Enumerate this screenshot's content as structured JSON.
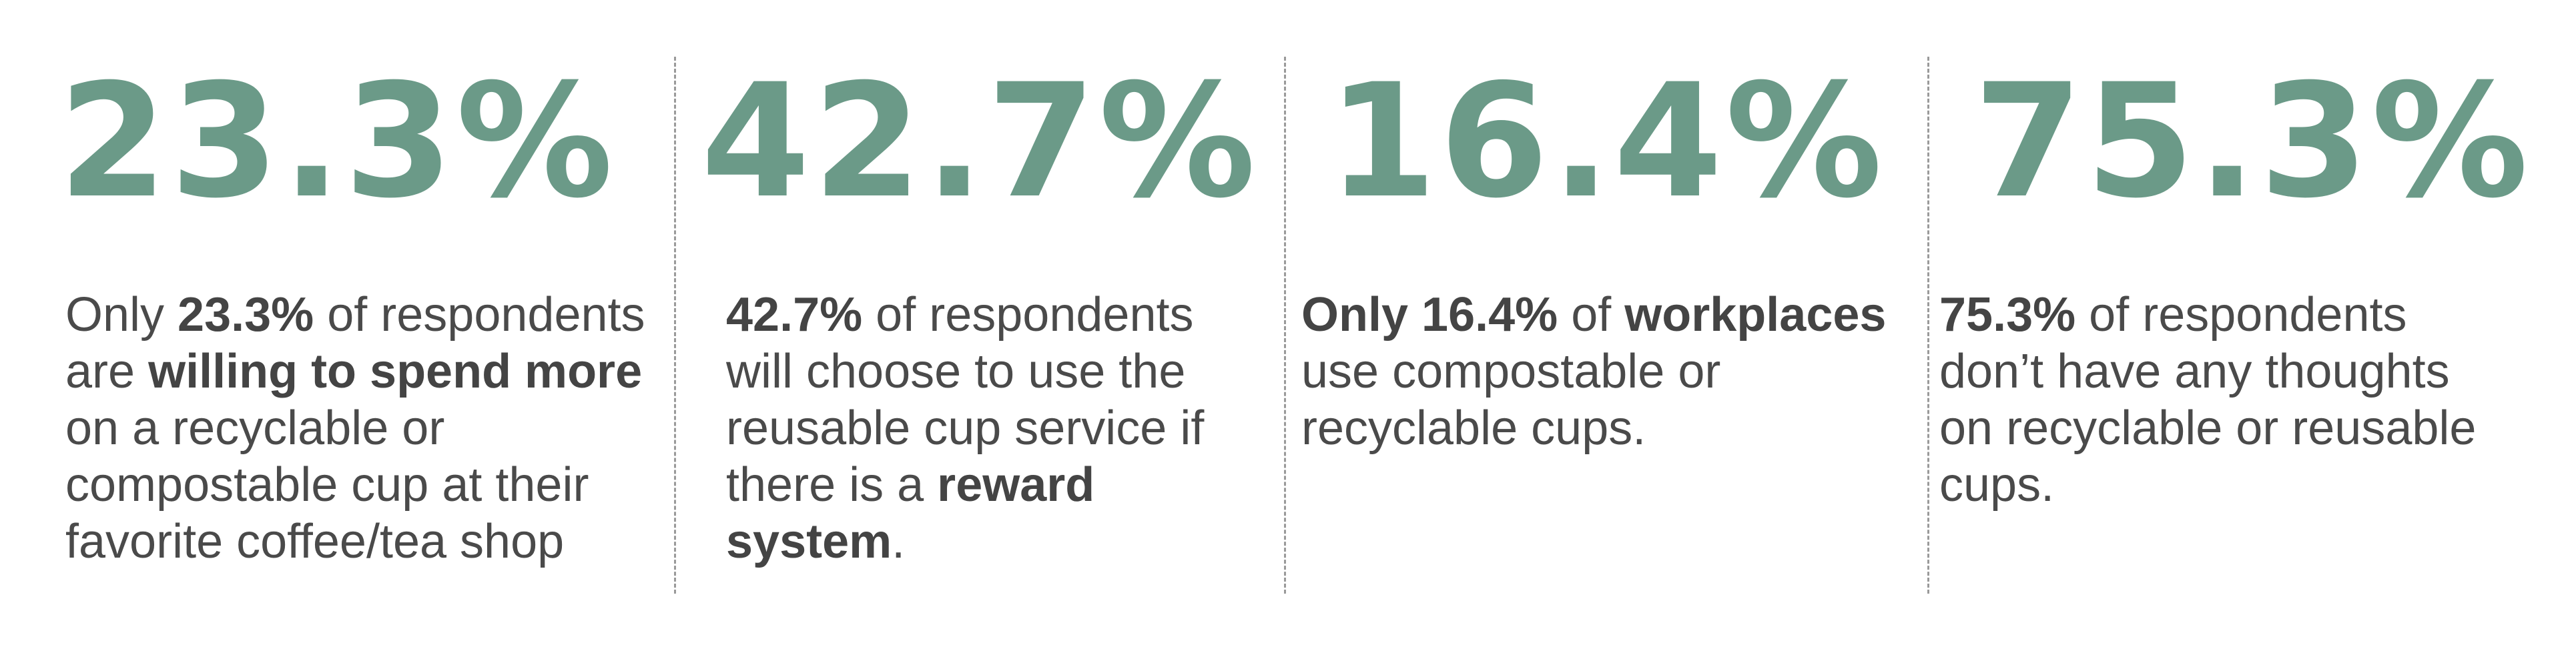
{
  "stats": [
    {
      "number": "23.3%",
      "lines": [
        [
          {
            "t": "Only ",
            "b": false
          },
          {
            "t": "23.3%",
            "b": true
          },
          {
            "t": " of respondents",
            "b": false
          }
        ],
        [
          {
            "t": "are ",
            "b": false
          },
          {
            "t": "willing to spend more",
            "b": true
          }
        ],
        [
          {
            "t": "on a recyclable or",
            "b": false
          }
        ],
        [
          {
            "t": "compostable cup at their",
            "b": false
          }
        ],
        [
          {
            "t": "favorite coffee/tea shop",
            "b": false
          }
        ]
      ]
    },
    {
      "number": "42.7%",
      "lines": [
        [
          {
            "t": "42.7%",
            "b": true
          },
          {
            "t": " of respondents",
            "b": false
          }
        ],
        [
          {
            "t": "will choose to use the",
            "b": false
          }
        ],
        [
          {
            "t": "reusable cup service if",
            "b": false
          }
        ],
        [
          {
            "t": "there is a ",
            "b": false
          },
          {
            "t": "reward",
            "b": true
          }
        ],
        [
          {
            "t": "system",
            "b": true
          },
          {
            "t": ".",
            "b": false
          }
        ]
      ]
    },
    {
      "number": "16.4%",
      "lines": [
        [
          {
            "t": "Only 16.4%",
            "b": true
          },
          {
            "t": " of ",
            "b": false
          },
          {
            "t": "workplaces",
            "b": true
          }
        ],
        [
          {
            "t": "use compostable or",
            "b": false
          }
        ],
        [
          {
            "t": "recyclable cups.",
            "b": false
          }
        ]
      ]
    },
    {
      "number": "75.3%",
      "lines": [
        [
          {
            "t": "75.3%",
            "b": true
          },
          {
            "t": " of respondents",
            "b": false
          }
        ],
        [
          {
            "t": "don’t have any thoughts",
            "b": false
          }
        ],
        [
          {
            "t": "on recyclable or reusable",
            "b": false
          }
        ],
        [
          {
            "t": "cups.",
            "b": false
          }
        ]
      ]
    }
  ],
  "colors": {
    "number": "#6b9a88",
    "text": "#4a4a4a",
    "divider": "#9a9a9a"
  }
}
